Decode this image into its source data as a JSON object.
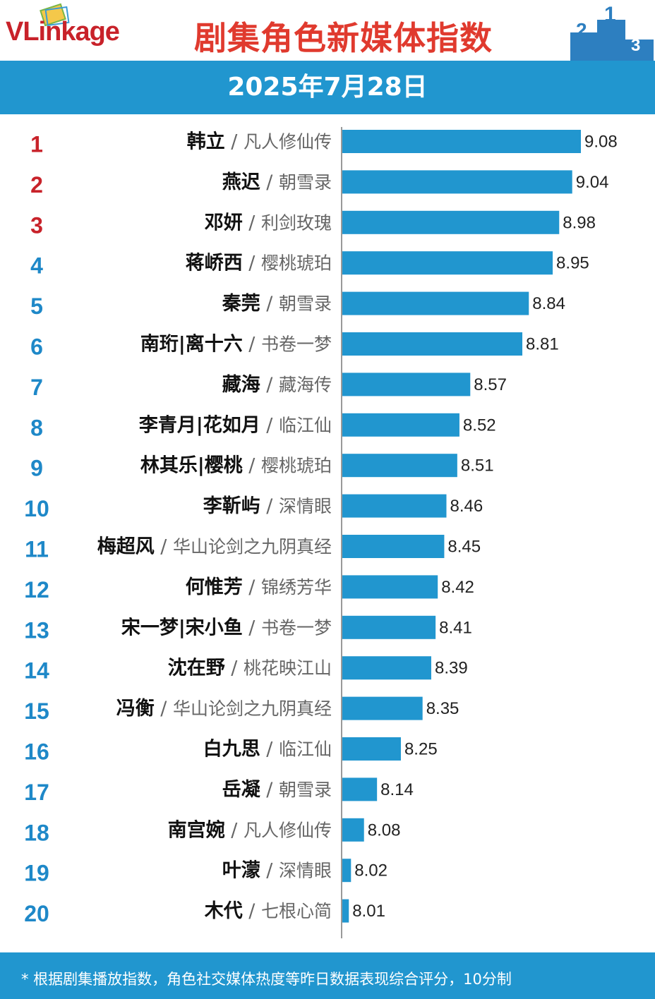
{
  "header": {
    "logo": "VLinkage",
    "title": "剧集角色新媒体指数",
    "podium": [
      "2",
      "1",
      "3"
    ]
  },
  "date_band": "2025年7月28日",
  "footer": "* 根据剧集播放指数，角色社交媒体热度等昨日数据表现综合评分，10分制",
  "colors": {
    "bar": "#2196cf",
    "band": "#2196cf",
    "title": "#e03a2e",
    "top_rank": "#c8222a",
    "rank": "#1e88c8"
  },
  "chart_data": {
    "type": "bar",
    "orientation": "horizontal",
    "categories": [
      {
        "rank": "1",
        "character": "韩立",
        "show": "凡人修仙传"
      },
      {
        "rank": "2",
        "character": "燕迟",
        "show": "朝雪录"
      },
      {
        "rank": "3",
        "character": "邓妍",
        "show": "利剑玫瑰"
      },
      {
        "rank": "4",
        "character": "蒋峤西",
        "show": "樱桃琥珀"
      },
      {
        "rank": "5",
        "character": "秦莞",
        "show": "朝雪录"
      },
      {
        "rank": "6",
        "character": "南珩|离十六",
        "show": "书卷一梦"
      },
      {
        "rank": "7",
        "character": "藏海",
        "show": "藏海传"
      },
      {
        "rank": "8",
        "character": "李青月|花如月",
        "show": "临江仙"
      },
      {
        "rank": "9",
        "character": "林其乐|樱桃",
        "show": "樱桃琥珀"
      },
      {
        "rank": "10",
        "character": "李靳屿",
        "show": "深情眼"
      },
      {
        "rank": "11",
        "character": "梅超风",
        "show": "华山论剑之九阴真经"
      },
      {
        "rank": "12",
        "character": "何惟芳",
        "show": "锦绣芳华"
      },
      {
        "rank": "13",
        "character": "宋一梦|宋小鱼",
        "show": "书卷一梦"
      },
      {
        "rank": "14",
        "character": "沈在野",
        "show": "桃花映江山"
      },
      {
        "rank": "15",
        "character": "冯衡",
        "show": "华山论剑之九阴真经"
      },
      {
        "rank": "16",
        "character": "白九思",
        "show": "临江仙"
      },
      {
        "rank": "17",
        "character": "岳凝",
        "show": "朝雪录"
      },
      {
        "rank": "18",
        "character": "南宫婉",
        "show": "凡人修仙传"
      },
      {
        "rank": "19",
        "character": "叶濛",
        "show": "深情眼"
      },
      {
        "rank": "20",
        "character": "木代",
        "show": "七根心简"
      }
    ],
    "values": [
      9.08,
      9.04,
      8.98,
      8.95,
      8.84,
      8.81,
      8.57,
      8.52,
      8.51,
      8.46,
      8.45,
      8.42,
      8.41,
      8.39,
      8.35,
      8.25,
      8.14,
      8.08,
      8.02,
      8.01
    ],
    "value_labels": [
      "9.08",
      "9.04",
      "8.98",
      "8.95",
      "8.84",
      "8.81",
      "8.57",
      "8.52",
      "8.51",
      "8.46",
      "8.45",
      "8.42",
      "8.41",
      "8.39",
      "8.35",
      "8.25",
      "8.14",
      "8.08",
      "8.02",
      "8.01"
    ],
    "separator": "/",
    "xlim": [
      7.98,
      9.08
    ],
    "grid": false,
    "legend": "none"
  }
}
